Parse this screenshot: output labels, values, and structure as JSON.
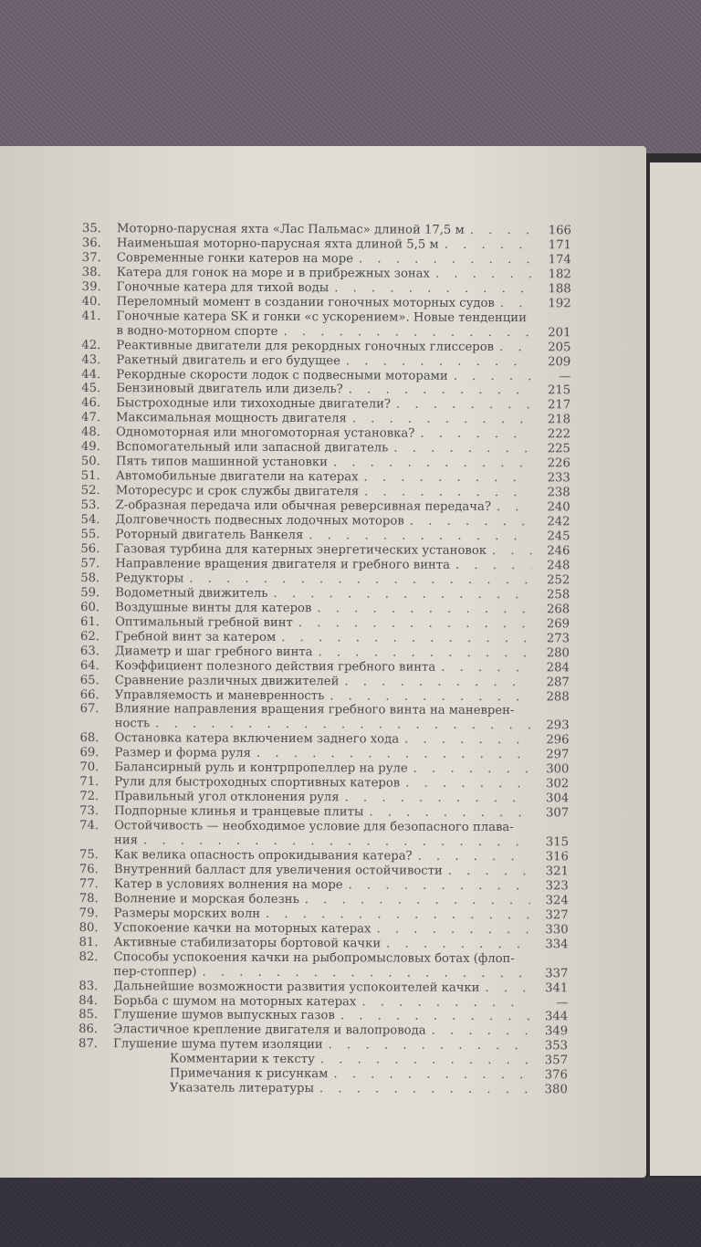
{
  "entries": [
    {
      "num": "35.",
      "title": "Моторно-парусная яхта «Лас Пальмас» длиной 17,5 м",
      "page": "166"
    },
    {
      "num": "36.",
      "title": "Наименьшая моторно-парусная яхта длиной 5,5 м",
      "page": "171"
    },
    {
      "num": "37.",
      "title": "Современные гонки катеров на море",
      "page": "174"
    },
    {
      "num": "38.",
      "title": "Катера для гонок на море и в прибрежных зонах",
      "page": "182"
    },
    {
      "num": "39.",
      "title": "Гоночные катера для тихой воды",
      "page": "188"
    },
    {
      "num": "40.",
      "title": "Переломный момент в создании гоночных моторных судов",
      "page": "192"
    },
    {
      "num": "41.",
      "title": "Гоночные катера SK и гонки «с ускорением». Новые тенденции",
      "cont": "в водно-моторном спорте",
      "page": "201"
    },
    {
      "num": "42.",
      "title": "Реактивные двигатели для рекордных гоночных глиссеров",
      "page": "205"
    },
    {
      "num": "43.",
      "title": "Ракетный двигатель и его будущее",
      "page": "209"
    },
    {
      "num": "44.",
      "title": "Рекордные скорости лодок с подвесными моторами",
      "page": "—"
    },
    {
      "num": "45.",
      "title": "Бензиновый двигатель или дизель?",
      "page": "215"
    },
    {
      "num": "46.",
      "title": "Быстроходные или тихоходные двигатели?",
      "page": "217"
    },
    {
      "num": "47.",
      "title": "Максимальная мощность двигателя",
      "page": "218"
    },
    {
      "num": "48.",
      "title": "Одномоторная или многомоторная установка?",
      "page": "222"
    },
    {
      "num": "49.",
      "title": "Вспомогательный или запасной двигатель",
      "page": "225"
    },
    {
      "num": "50.",
      "title": "Пять типов машинной установки",
      "page": "226"
    },
    {
      "num": "51.",
      "title": "Автомобильные двигатели на катерах",
      "page": "233"
    },
    {
      "num": "52.",
      "title": "Моторесурс и срок службы двигателя",
      "page": "238"
    },
    {
      "num": "53.",
      "title": "Z-образная передача или обычная реверсивная передача?",
      "page": "240"
    },
    {
      "num": "54.",
      "title": "Долговечность подвесных лодочных моторов",
      "page": "242"
    },
    {
      "num": "55.",
      "title": "Роторный двигатель Ванкеля",
      "page": "245"
    },
    {
      "num": "56.",
      "title": "Газовая турбина для катерных энергетических установок",
      "page": "246"
    },
    {
      "num": "57.",
      "title": "Направление вращения двигателя и гребного винта",
      "page": "248"
    },
    {
      "num": "58.",
      "title": "Редукторы",
      "page": "252"
    },
    {
      "num": "59.",
      "title": "Водометный движитель",
      "page": "258"
    },
    {
      "num": "60.",
      "title": "Воздушные винты для катеров",
      "page": "268"
    },
    {
      "num": "61.",
      "title": "Оптимальный гребной винт",
      "page": "269"
    },
    {
      "num": "62.",
      "title": "Гребной винт за катером",
      "page": "273"
    },
    {
      "num": "63.",
      "title": "Диаметр и шаг гребного винта",
      "page": "280"
    },
    {
      "num": "64.",
      "title": "Коэффициент полезного действия гребного винта",
      "page": "284"
    },
    {
      "num": "65.",
      "title": "Сравнение различных движителей",
      "page": "287"
    },
    {
      "num": "66.",
      "title": "Управляемость и маневренность",
      "page": "288"
    },
    {
      "num": "67.",
      "title": "Влияние направления вращения гребного винта на маневрен-",
      "cont": "ность",
      "page": "293"
    },
    {
      "num": "68.",
      "title": "Остановка катера включением заднего хода",
      "page": "296"
    },
    {
      "num": "69.",
      "title": "Размер и форма руля",
      "page": "297"
    },
    {
      "num": "70.",
      "title": "Балансирный руль и контрпропеллер на руле",
      "page": "300"
    },
    {
      "num": "71.",
      "title": "Рули для быстроходных спортивных катеров",
      "page": "302"
    },
    {
      "num": "72.",
      "title": "Правильный угол отклонения руля",
      "page": "304"
    },
    {
      "num": "73.",
      "title": "Подпорные клинья и транцевые плиты",
      "page": "307"
    },
    {
      "num": "74.",
      "title": "Остойчивость — необходимое условие для безопасного плава-",
      "cont": "ния",
      "page": "315"
    },
    {
      "num": "75.",
      "title": "Как велика опасность опрокидывания катера?",
      "page": "316"
    },
    {
      "num": "76.",
      "title": "Внутренний балласт для увеличения остойчивости",
      "page": "321"
    },
    {
      "num": "77.",
      "title": "Катер в условиях волнения на море",
      "page": "323"
    },
    {
      "num": "78.",
      "title": "Волнение и морская болезнь",
      "page": "324"
    },
    {
      "num": "79.",
      "title": "Размеры морских волн",
      "page": "327"
    },
    {
      "num": "80.",
      "title": "Успокоение качки на моторных катерах",
      "page": "330"
    },
    {
      "num": "81.",
      "title": "Активные стабилизаторы бортовой качки",
      "page": "334"
    },
    {
      "num": "82.",
      "title": "Способы успокоения качки на рыбопромысловых ботах (флоп-",
      "cont": "пер-стоппер)",
      "page": "337"
    },
    {
      "num": "83.",
      "title": "Дальнейшие возможности развития успокоителей качки",
      "page": "341"
    },
    {
      "num": "84.",
      "title": "Борьба с шумом на моторных катерах",
      "page": "—"
    },
    {
      "num": "85.",
      "title": "Глушение шумов выпускных газов",
      "page": "344"
    },
    {
      "num": "86.",
      "title": "Эластичное крепление двигателя и валопровода",
      "page": "349"
    },
    {
      "num": "87.",
      "title": "Глушение шума путем изоляции",
      "page": "353"
    }
  ],
  "appendix": [
    {
      "title": "Комментарии к тексту",
      "page": "357"
    },
    {
      "title": "Примечания к рисункам",
      "page": "376"
    },
    {
      "title": "Указатель литературы",
      "page": "380"
    }
  ]
}
